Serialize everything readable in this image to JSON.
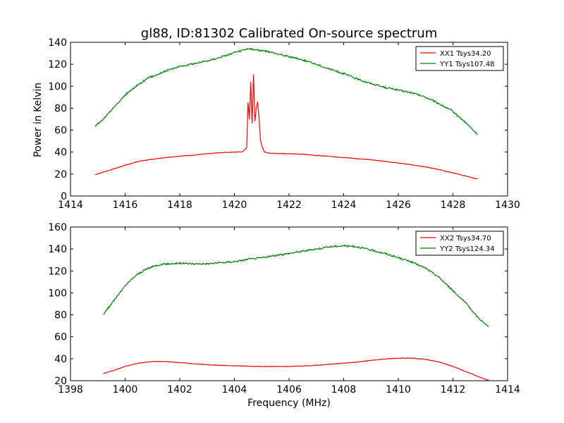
{
  "title": "gl88, ID:81302 Calibrated On-source spectrum",
  "chart_data": [
    {
      "type": "line",
      "panel": "top",
      "xlabel": "",
      "ylabel": "Power in Kelvin",
      "xlim": [
        1414,
        1430
      ],
      "ylim": [
        0,
        140
      ],
      "xticks": [
        1414,
        1416,
        1418,
        1420,
        1422,
        1424,
        1426,
        1428,
        1430
      ],
      "yticks": [
        0,
        20,
        40,
        60,
        80,
        100,
        120,
        140
      ],
      "legend_position": "top-right",
      "grid": false,
      "series": [
        {
          "name": "XX1 Tsys34.20",
          "color": "#ff0000",
          "x": [
            1414.9,
            1415.5,
            1416,
            1416.5,
            1417,
            1417.5,
            1418,
            1418.5,
            1419,
            1419.5,
            1420,
            1420.3,
            1420.45,
            1420.5,
            1420.55,
            1420.6,
            1420.65,
            1420.7,
            1420.75,
            1420.8,
            1420.85,
            1420.9,
            1420.95,
            1421,
            1421.1,
            1421.3,
            1421.5,
            1422,
            1422.5,
            1423,
            1423.5,
            1424,
            1424.5,
            1425,
            1425.5,
            1426,
            1426.5,
            1427,
            1427.5,
            1428,
            1428.5,
            1428.9
          ],
          "y": [
            19.5,
            24,
            28,
            31.5,
            33.5,
            35,
            36.2,
            37.2,
            38.5,
            39.5,
            40,
            40.3,
            44,
            85,
            70,
            104,
            66,
            111,
            68,
            80,
            86,
            72,
            52,
            46,
            40,
            39,
            38.8,
            38.5,
            38,
            37,
            36,
            35,
            34,
            33,
            31.5,
            30,
            28.5,
            26.5,
            24,
            21,
            18,
            15.5
          ]
        },
        {
          "name": "YY1 Tsys107.48",
          "color": "#008000",
          "x": [
            1414.9,
            1415.2,
            1415.6,
            1416,
            1416.4,
            1416.8,
            1417.2,
            1417.6,
            1418,
            1418.5,
            1419,
            1419.5,
            1420,
            1420.5,
            1421,
            1421.5,
            1422,
            1422.5,
            1423,
            1423.5,
            1424,
            1424.5,
            1425,
            1425.5,
            1426,
            1426.5,
            1427,
            1427.5,
            1428,
            1428.5,
            1428.9
          ],
          "y": [
            63.5,
            70,
            81,
            92,
            100,
            107,
            111,
            115,
            118,
            120.5,
            123,
            126.5,
            130.5,
            134,
            132.5,
            130,
            127,
            124,
            120,
            115.5,
            111.5,
            106.5,
            102.5,
            99,
            96.5,
            94,
            90,
            84,
            77,
            66,
            56
          ]
        }
      ]
    },
    {
      "type": "line",
      "panel": "bottom",
      "xlabel": "Frequency (MHz)",
      "ylabel": "",
      "xlim": [
        1398,
        1414
      ],
      "ylim": [
        20,
        160
      ],
      "xticks": [
        1398,
        1400,
        1402,
        1404,
        1406,
        1408,
        1410,
        1412,
        1414
      ],
      "yticks": [
        20,
        40,
        60,
        80,
        100,
        120,
        140,
        160
      ],
      "legend_position": "top-right",
      "grid": false,
      "series": [
        {
          "name": "XX2 Tsys34.70",
          "color": "#ff0000",
          "x": [
            1399.2,
            1399.6,
            1400,
            1400.5,
            1401,
            1401.5,
            1402,
            1402.5,
            1403,
            1403.5,
            1404,
            1405,
            1406,
            1406.5,
            1407,
            1407.5,
            1408,
            1408.5,
            1409,
            1409.5,
            1410,
            1410.5,
            1411,
            1411.5,
            1412,
            1412.5,
            1413,
            1413.3
          ],
          "y": [
            26.5,
            29.5,
            33,
            36,
            37.5,
            37.5,
            36.5,
            35.5,
            34.5,
            34,
            33.5,
            33,
            33,
            33.5,
            34,
            35,
            36,
            37,
            38.5,
            39.8,
            40.5,
            40.5,
            39.5,
            37,
            33,
            28,
            23,
            20.5
          ]
        },
        {
          "name": "YY2 Tsys124.34",
          "color": "#008000",
          "x": [
            1399.2,
            1399.5,
            1399.8,
            1400.1,
            1400.4,
            1400.8,
            1401.2,
            1401.6,
            1402,
            1402.5,
            1403,
            1403.5,
            1404,
            1404.5,
            1405,
            1405.5,
            1406,
            1406.5,
            1407,
            1407.5,
            1408,
            1408.5,
            1409,
            1409.5,
            1410,
            1410.5,
            1411,
            1411.5,
            1412,
            1412.3,
            1412.6,
            1412.9,
            1413.3
          ],
          "y": [
            80.5,
            90,
            100,
            109,
            116,
            122,
            125.5,
            126.5,
            127,
            126.5,
            126.5,
            127.5,
            128.5,
            130.5,
            132,
            134,
            136,
            138,
            140,
            142,
            143,
            142,
            139,
            136,
            132,
            128,
            122.5,
            114,
            102,
            95,
            87,
            78,
            69
          ]
        }
      ]
    }
  ]
}
